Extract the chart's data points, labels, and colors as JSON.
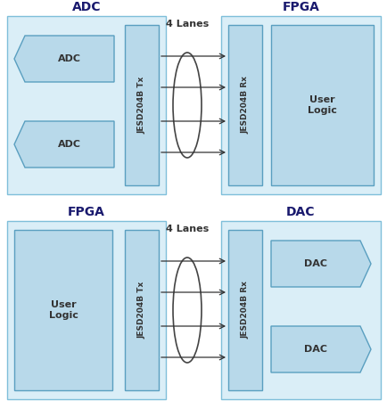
{
  "bg_color": "#ffffff",
  "outer_fill": "#daeef7",
  "outer_edge": "#7fbfda",
  "inner_fill": "#b8d9ea",
  "inner_edge": "#5a9fc0",
  "text_color": "#333333",
  "title_color": "#1a1a6e",
  "arrow_color": "#333333",
  "top_title_left": "ADC",
  "top_title_right": "FPGA",
  "bot_title_left": "FPGA",
  "bot_title_right": "DAC",
  "lanes_label": "4 Lanes",
  "figw": 4.35,
  "figh": 4.59,
  "dpi": 100
}
